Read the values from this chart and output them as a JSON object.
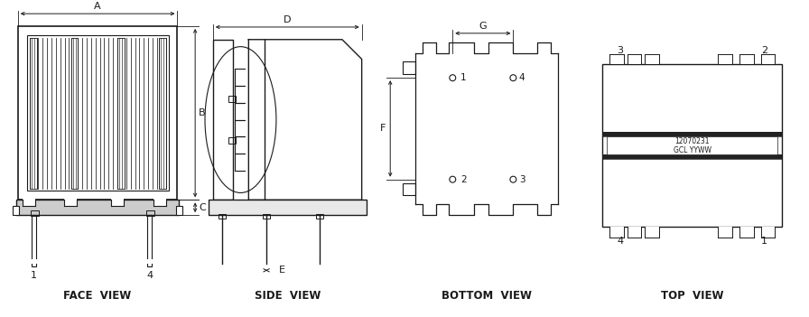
{
  "bg_color": "#ffffff",
  "line_color": "#1a1a1a",
  "text_12070231": "12070231",
  "text_gcl": "GCL YYWW",
  "views": [
    "FACE  VIEW",
    "SIDE  VIEW",
    "BOTTOM  VIEW",
    "TOP  VIEW"
  ]
}
